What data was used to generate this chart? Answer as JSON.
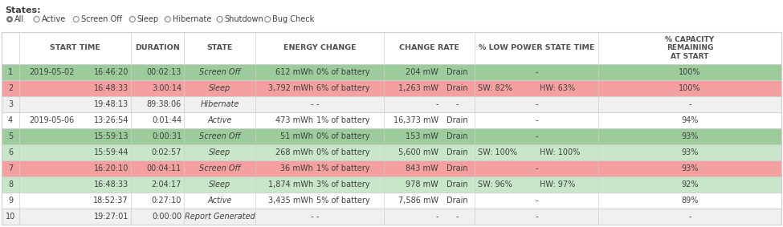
{
  "title_states": "States:",
  "radio_options": [
    "All",
    "Active",
    "Screen Off",
    "Sleep",
    "Hibernate",
    "Shutdown",
    "Bug Check"
  ],
  "rows": [
    {
      "num": "1",
      "date": "2019-05-02",
      "time": "16:46:20",
      "duration": "00:02:13",
      "state": "Screen Off",
      "e1": "612 mWh",
      "e2": "0% of battery",
      "r1": "204 mW",
      "r2": "Drain",
      "lps1": "",
      "lps2": "",
      "cap": "100%",
      "bg": "green"
    },
    {
      "num": "2",
      "date": "",
      "time": "16:48:33",
      "duration": "3:00:14",
      "state": "Sleep",
      "e1": "3,792 mWh",
      "e2": "6% of battery",
      "r1": "1,263 mW",
      "r2": "Drain",
      "lps1": "SW: 82%",
      "lps2": "HW: 63%",
      "cap": "100%",
      "bg": "red"
    },
    {
      "num": "3",
      "date": "",
      "time": "19:48:13",
      "duration": "89:38:06",
      "state": "Hibernate",
      "e1": "-",
      "e2": "-",
      "r1": "-",
      "r2": "-",
      "lps1": "",
      "lps2": "",
      "cap": "-",
      "bg": "gray"
    },
    {
      "num": "4",
      "date": "2019-05-06",
      "time": "13:26:54",
      "duration": "0:01:44",
      "state": "Active",
      "e1": "473 mWh",
      "e2": "1% of battery",
      "r1": "16,373 mW",
      "r2": "Drain",
      "lps1": "",
      "lps2": "",
      "cap": "94%",
      "bg": "white"
    },
    {
      "num": "5",
      "date": "",
      "time": "15:59:13",
      "duration": "0:00:31",
      "state": "Screen Off",
      "e1": "51 mWh",
      "e2": "0% of battery",
      "r1": "153 mW",
      "r2": "Drain",
      "lps1": "",
      "lps2": "",
      "cap": "93%",
      "bg": "green"
    },
    {
      "num": "6",
      "date": "",
      "time": "15:59:44",
      "duration": "0:02:57",
      "state": "Sleep",
      "e1": "268 mWh",
      "e2": "0% of battery",
      "r1": "5,600 mW",
      "r2": "Drain",
      "lps1": "SW: 100%",
      "lps2": "HW: 100%",
      "cap": "93%",
      "bg": "lgreen"
    },
    {
      "num": "7",
      "date": "",
      "time": "16:20:10",
      "duration": "00:04:11",
      "state": "Screen Off",
      "e1": "36 mWh",
      "e2": "1% of battery",
      "r1": "843 mW",
      "r2": "Drain",
      "lps1": "",
      "lps2": "",
      "cap": "93%",
      "bg": "red"
    },
    {
      "num": "8",
      "date": "",
      "time": "16:48:33",
      "duration": "2:04:17",
      "state": "Sleep",
      "e1": "1,874 mWh",
      "e2": "3% of battery",
      "r1": "978 mW",
      "r2": "Drain",
      "lps1": "SW: 96%",
      "lps2": "HW: 97%",
      "cap": "92%",
      "bg": "lgreen"
    },
    {
      "num": "9",
      "date": "",
      "time": "18:52:37",
      "duration": "0:27:10",
      "state": "Active",
      "e1": "3,435 mWh",
      "e2": "5% of battery",
      "r1": "7,586 mW",
      "r2": "Drain",
      "lps1": "",
      "lps2": "",
      "cap": "89%",
      "bg": "white"
    },
    {
      "num": "10",
      "date": "",
      "time": "19:27:01",
      "duration": "0:00:00",
      "state": "Report Generated",
      "e1": "-",
      "e2": "-",
      "r1": "-",
      "r2": "-",
      "lps1": "",
      "lps2": "",
      "cap": "-",
      "bg": "gray"
    }
  ],
  "bg_green": "#9CCC9C",
  "bg_lgreen": "#C8E6C8",
  "bg_red": "#F4A0A0",
  "bg_white": "#FFFFFF",
  "bg_gray": "#F0F0F0",
  "border": "#D0D0D0",
  "text": "#404040",
  "header_text": "#505050"
}
